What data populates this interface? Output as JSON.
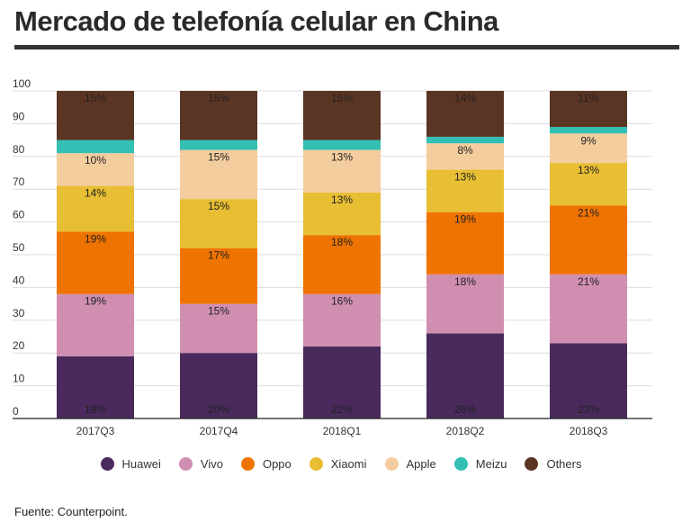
{
  "title": "Mercado de telefonía celular en China",
  "source": "Fuente: Counterpoint.",
  "chart_data": {
    "type": "bar",
    "stacked": true,
    "categories": [
      "2017Q3",
      "2017Q4",
      "2018Q1",
      "2018Q2",
      "2018Q3"
    ],
    "ylim": [
      0,
      100
    ],
    "yticks": [
      0,
      10,
      20,
      30,
      40,
      50,
      60,
      70,
      80,
      90,
      100
    ],
    "grid": true,
    "legend_position": "bottom",
    "series": [
      {
        "name": "Huawei",
        "color": "#4a2a5c",
        "values": [
          19,
          20,
          22,
          26,
          23
        ],
        "labels": [
          "19%",
          "20%",
          "22%",
          "26%",
          "23%"
        ]
      },
      {
        "name": "Vivo",
        "color": "#d08fb0",
        "values": [
          19,
          15,
          16,
          18,
          21
        ],
        "labels": [
          "19%",
          "15%",
          "16%",
          "18%",
          "21%"
        ]
      },
      {
        "name": "Oppo",
        "color": "#ef7300",
        "values": [
          19,
          17,
          18,
          19,
          21
        ],
        "labels": [
          "19%",
          "17%",
          "18%",
          "19%",
          "21%"
        ]
      },
      {
        "name": "Xiaomi",
        "color": "#e8be34",
        "values": [
          14,
          15,
          13,
          13,
          13
        ],
        "labels": [
          "14%",
          "15%",
          "13%",
          "13%",
          "13%"
        ]
      },
      {
        "name": "Apple",
        "color": "#f4cd9f",
        "values": [
          10,
          15,
          13,
          8,
          9
        ],
        "labels": [
          "10%",
          "15%",
          "13%",
          "8%",
          "9%"
        ]
      },
      {
        "name": "Meizu",
        "color": "#33bfb3",
        "values": [
          4,
          3,
          3,
          2,
          2
        ],
        "labels": [
          "",
          "",
          "",
          "",
          ""
        ]
      },
      {
        "name": "Others",
        "color": "#5a3524",
        "values": [
          15,
          15,
          15,
          14,
          11
        ],
        "labels": [
          "15%",
          "15%",
          "15%",
          "14%",
          "11%"
        ]
      }
    ]
  }
}
